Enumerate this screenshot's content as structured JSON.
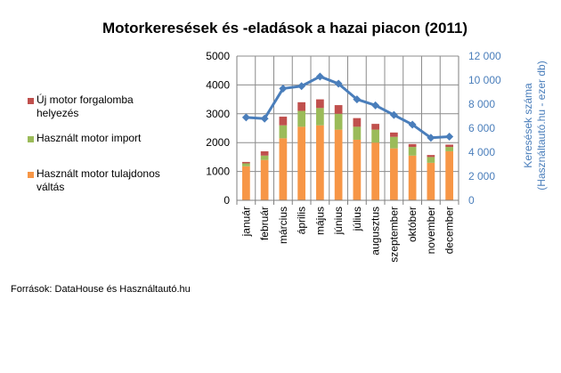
{
  "chart_data": {
    "type": "bar",
    "title": "Motorkeresések és -eladások a hazai piacon (2011)",
    "categories": [
      "január",
      "február",
      "március",
      "április",
      "május",
      "június",
      "július",
      "augusztus",
      "szeptember",
      "október",
      "november",
      "december"
    ],
    "series": [
      {
        "name": "Használt motor tulajdonos váltás",
        "color": "#f79646",
        "kind": "stacked-bar",
        "axis": "left",
        "values": [
          1180,
          1400,
          2150,
          2550,
          2600,
          2450,
          2100,
          2000,
          1800,
          1550,
          1300,
          1700
        ]
      },
      {
        "name": "Használt motor import",
        "color": "#9bbb59",
        "kind": "stacked-bar",
        "axis": "left",
        "values": [
          100,
          150,
          450,
          550,
          600,
          550,
          450,
          450,
          400,
          300,
          200,
          150
        ]
      },
      {
        "name": "Új motor forgalomba helyezés",
        "color": "#c0504d",
        "kind": "stacked-bar",
        "axis": "left",
        "values": [
          50,
          150,
          300,
          300,
          300,
          300,
          300,
          200,
          150,
          100,
          70,
          80
        ]
      },
      {
        "name": "",
        "color": "#4a7ebb",
        "kind": "line",
        "axis": "right",
        "values": [
          6900,
          6800,
          9300,
          9500,
          10300,
          9700,
          8400,
          7900,
          7100,
          6300,
          5200,
          5300
        ]
      }
    ],
    "yaxis_left": {
      "min": 0,
      "max": 5000,
      "step": 1000,
      "ticks": [
        "0",
        "1000",
        "2000",
        "3000",
        "4000",
        "5000"
      ]
    },
    "yaxis_right": {
      "min": 0,
      "max": 12000,
      "step": 2000,
      "ticks": [
        "0",
        "2 000",
        "4 000",
        "6 000",
        "8 000",
        "10 000",
        "12 000"
      ],
      "label_line1": "Keresések száma",
      "label_line2": "(Használtautó.hu - ezer db)"
    },
    "grid": true,
    "legend_position": "left"
  },
  "legend": [
    {
      "label_line1": "Új motor forgalomba",
      "label_line2": "helyezés",
      "color": "#c0504d"
    },
    {
      "label_line1": "Használt motor import",
      "label_line2": "",
      "color": "#9bbb59"
    },
    {
      "label_line1": "Használt motor tulajdonos",
      "label_line2": "váltás",
      "color": "#f79646"
    }
  ],
  "source_text": "Források: DataHouse és Használtautó.hu"
}
